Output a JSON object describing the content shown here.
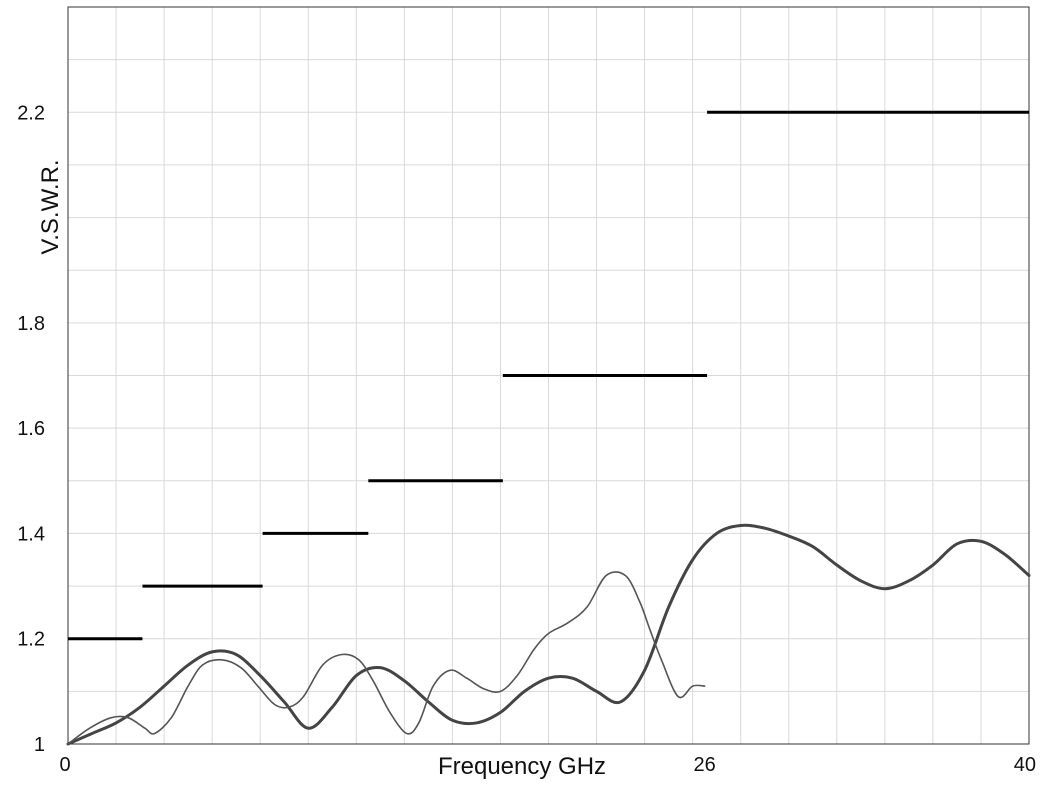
{
  "chart_data": {
    "type": "line",
    "title": "",
    "xlabel": "Frequency GHz",
    "ylabel": "V.S.W.R.",
    "xlim": [
      0,
      40
    ],
    "ylim": [
      1.0,
      2.4
    ],
    "grid": true,
    "x_tick_labels": [
      {
        "value": 0,
        "label": "0"
      },
      {
        "value": 26.5,
        "label": "26"
      },
      {
        "value": 40,
        "label": "40"
      }
    ],
    "y_tick_labels": [
      {
        "value": 1.0,
        "label": "1"
      },
      {
        "value": 1.2,
        "label": "1.2"
      },
      {
        "value": 1.4,
        "label": "1.4"
      },
      {
        "value": 1.6,
        "label": "1.6"
      },
      {
        "value": 1.8,
        "label": "1.8"
      },
      {
        "value": 2.2,
        "label": "2.2"
      }
    ],
    "series": [
      {
        "style": "limit-steps",
        "color": "#000000",
        "segments": [
          {
            "x": [
              0,
              3.1
            ],
            "y": 1.2
          },
          {
            "x": [
              3.1,
              8.1
            ],
            "y": 1.3
          },
          {
            "x": [
              8.1,
              12.5
            ],
            "y": 1.4
          },
          {
            "x": [
              12.5,
              18.1
            ],
            "y": 1.5
          },
          {
            "x": [
              18.1,
              26.6
            ],
            "y": 1.7
          },
          {
            "x": [
              26.6,
              40
            ],
            "y": 2.2
          }
        ]
      },
      {
        "style": "thick",
        "color": "#444444",
        "x": [
          0,
          1,
          2,
          3,
          4,
          5,
          6,
          7,
          8,
          9,
          10,
          11,
          12,
          13,
          14,
          15,
          16,
          17,
          18,
          19,
          20,
          21,
          22,
          23,
          24,
          25,
          26,
          27,
          28,
          29,
          30,
          31,
          32,
          33,
          34,
          35,
          36,
          37,
          38,
          39,
          40
        ],
        "y": [
          1.0,
          1.02,
          1.04,
          1.07,
          1.11,
          1.15,
          1.175,
          1.17,
          1.13,
          1.08,
          1.03,
          1.07,
          1.13,
          1.145,
          1.12,
          1.08,
          1.045,
          1.04,
          1.06,
          1.1,
          1.125,
          1.125,
          1.1,
          1.08,
          1.14,
          1.26,
          1.35,
          1.4,
          1.415,
          1.41,
          1.395,
          1.375,
          1.34,
          1.31,
          1.295,
          1.31,
          1.34,
          1.38,
          1.385,
          1.36,
          1.32
        ]
      },
      {
        "style": "thin",
        "color": "#555555",
        "x": [
          0,
          0.9,
          1.8,
          2.5,
          3.2,
          3.6,
          4.3,
          5,
          5.6,
          6.4,
          7.2,
          7.9,
          8.6,
          9.2,
          9.8,
          10.6,
          11.4,
          12.1,
          12.7,
          13.4,
          14.1,
          14.6,
          15.2,
          15.9,
          16.6,
          17.3,
          18,
          18.7,
          19.4,
          20,
          20.8,
          21.6,
          22.4,
          23.2,
          23.8,
          24.2,
          24.7,
          25.4,
          26,
          26.5
        ],
        "y": [
          1.0,
          1.03,
          1.05,
          1.05,
          1.03,
          1.02,
          1.05,
          1.11,
          1.15,
          1.16,
          1.145,
          1.11,
          1.075,
          1.07,
          1.09,
          1.15,
          1.17,
          1.16,
          1.12,
          1.06,
          1.02,
          1.04,
          1.11,
          1.14,
          1.125,
          1.105,
          1.1,
          1.13,
          1.18,
          1.21,
          1.23,
          1.26,
          1.32,
          1.32,
          1.27,
          1.22,
          1.16,
          1.09,
          1.11,
          1.11
        ]
      }
    ]
  }
}
